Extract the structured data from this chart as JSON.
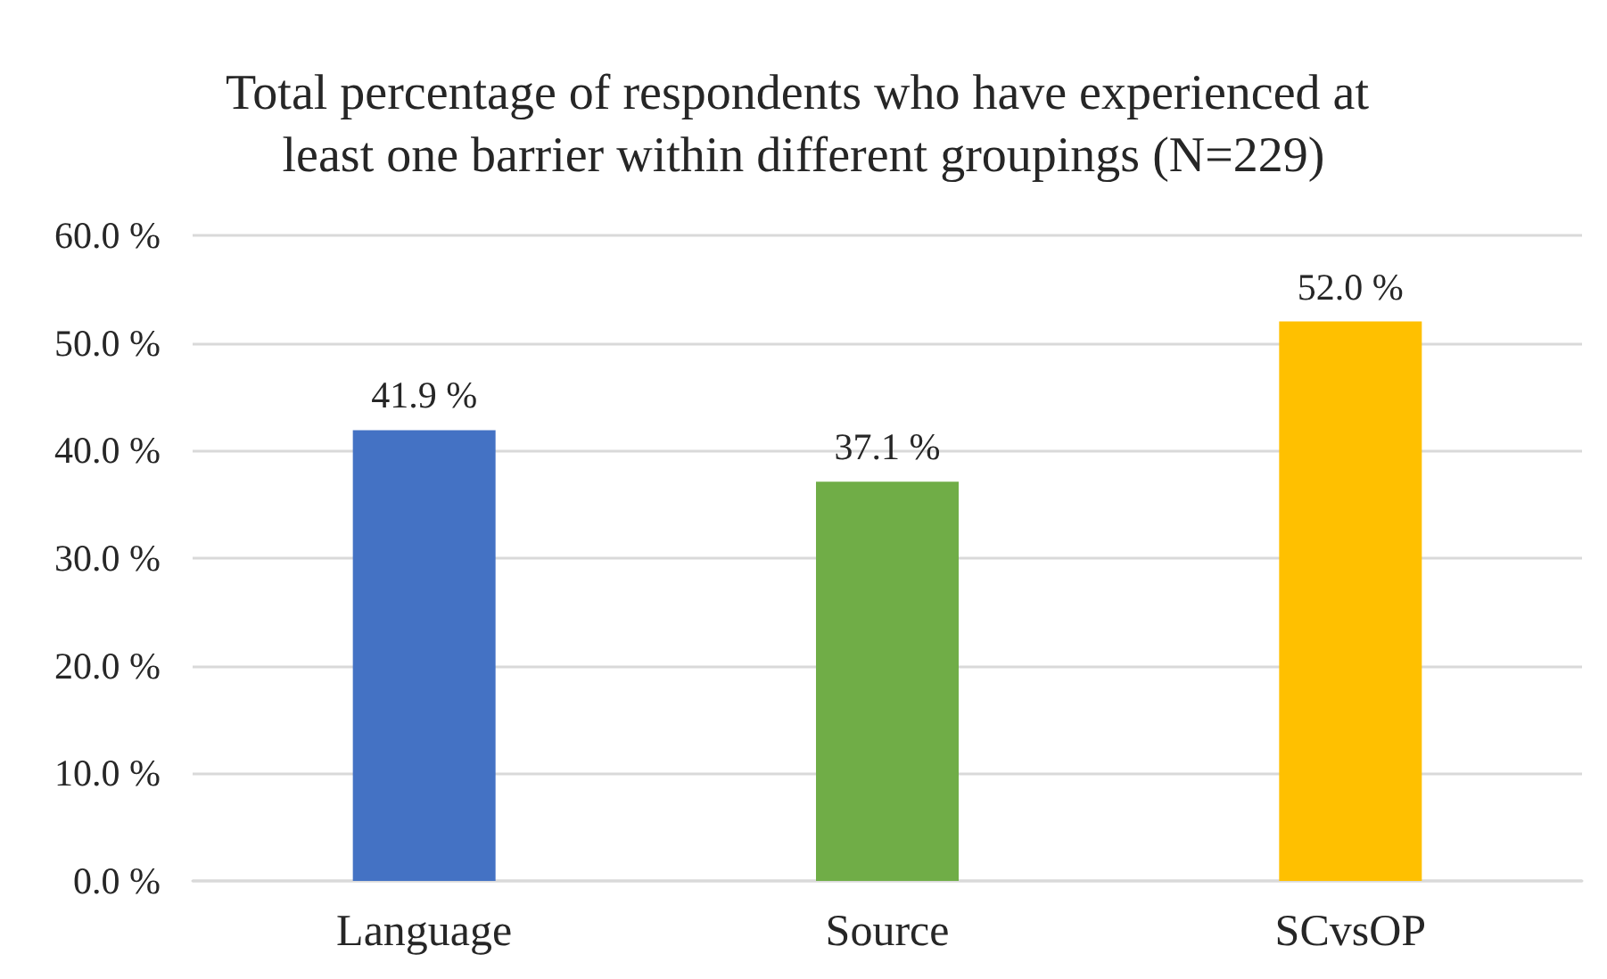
{
  "chart_data": {
    "type": "bar",
    "title": "Total percentage of respondents who have experienced at least one barrier within different groupings (N=229)",
    "categories": [
      "Language",
      "Source",
      "SCvsOP"
    ],
    "values": [
      41.9,
      37.1,
      52.0
    ],
    "colors": [
      "#4472c4",
      "#70ad47",
      "#ffc000"
    ],
    "value_labels": [
      "41.9 %",
      "37.1 %",
      "52.0 %"
    ],
    "ylim": [
      0,
      60
    ],
    "yticks": [
      {
        "value": 0,
        "label": "0.0 %"
      },
      {
        "value": 10,
        "label": "10.0 %"
      },
      {
        "value": 20,
        "label": "20.0 %"
      },
      {
        "value": 30,
        "label": "30.0 %"
      },
      {
        "value": 40,
        "label": "40.0 %"
      },
      {
        "value": 50,
        "label": "50.0 %"
      },
      {
        "value": 60,
        "label": "60.0 %"
      }
    ],
    "grid": "y"
  }
}
